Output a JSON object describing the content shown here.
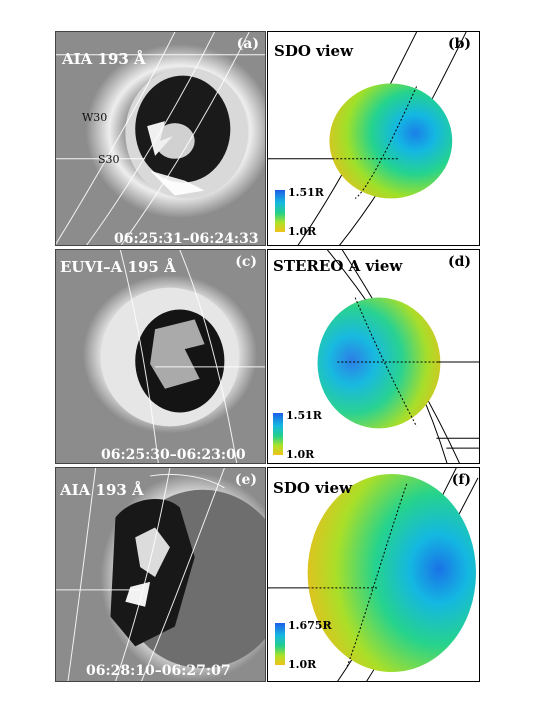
{
  "panels": {
    "a": {
      "title": "AIA 193 Å",
      "tag": "(a)",
      "time": "06:25:31–06:24:33",
      "coord_w": "W30",
      "coord_s": "S30"
    },
    "b": {
      "title": "SDO view",
      "tag": "(b)",
      "cbar_max": "1.51R",
      "cbar_min": "1.0R"
    },
    "c": {
      "title": "EUVI–A 195 Å",
      "tag": "(c)",
      "time": "06:25:30–06:23:00"
    },
    "d": {
      "title": "STEREO A view",
      "tag": "(d)",
      "cbar_max": "1.51R",
      "cbar_min": "1.0R"
    },
    "e": {
      "title": "AIA 193 Å",
      "tag": "(e)",
      "time": "06:28:10–06:27:07"
    },
    "f": {
      "title": "SDO view",
      "tag": "(f)",
      "cbar_max": "1.675R",
      "cbar_min": "1.0R"
    }
  },
  "colors": {
    "euv_background": "#8c8c8c",
    "colorbar": [
      "#1c5ee8",
      "#16b8e0",
      "#25d089",
      "#aee227",
      "#f1c21b"
    ]
  }
}
